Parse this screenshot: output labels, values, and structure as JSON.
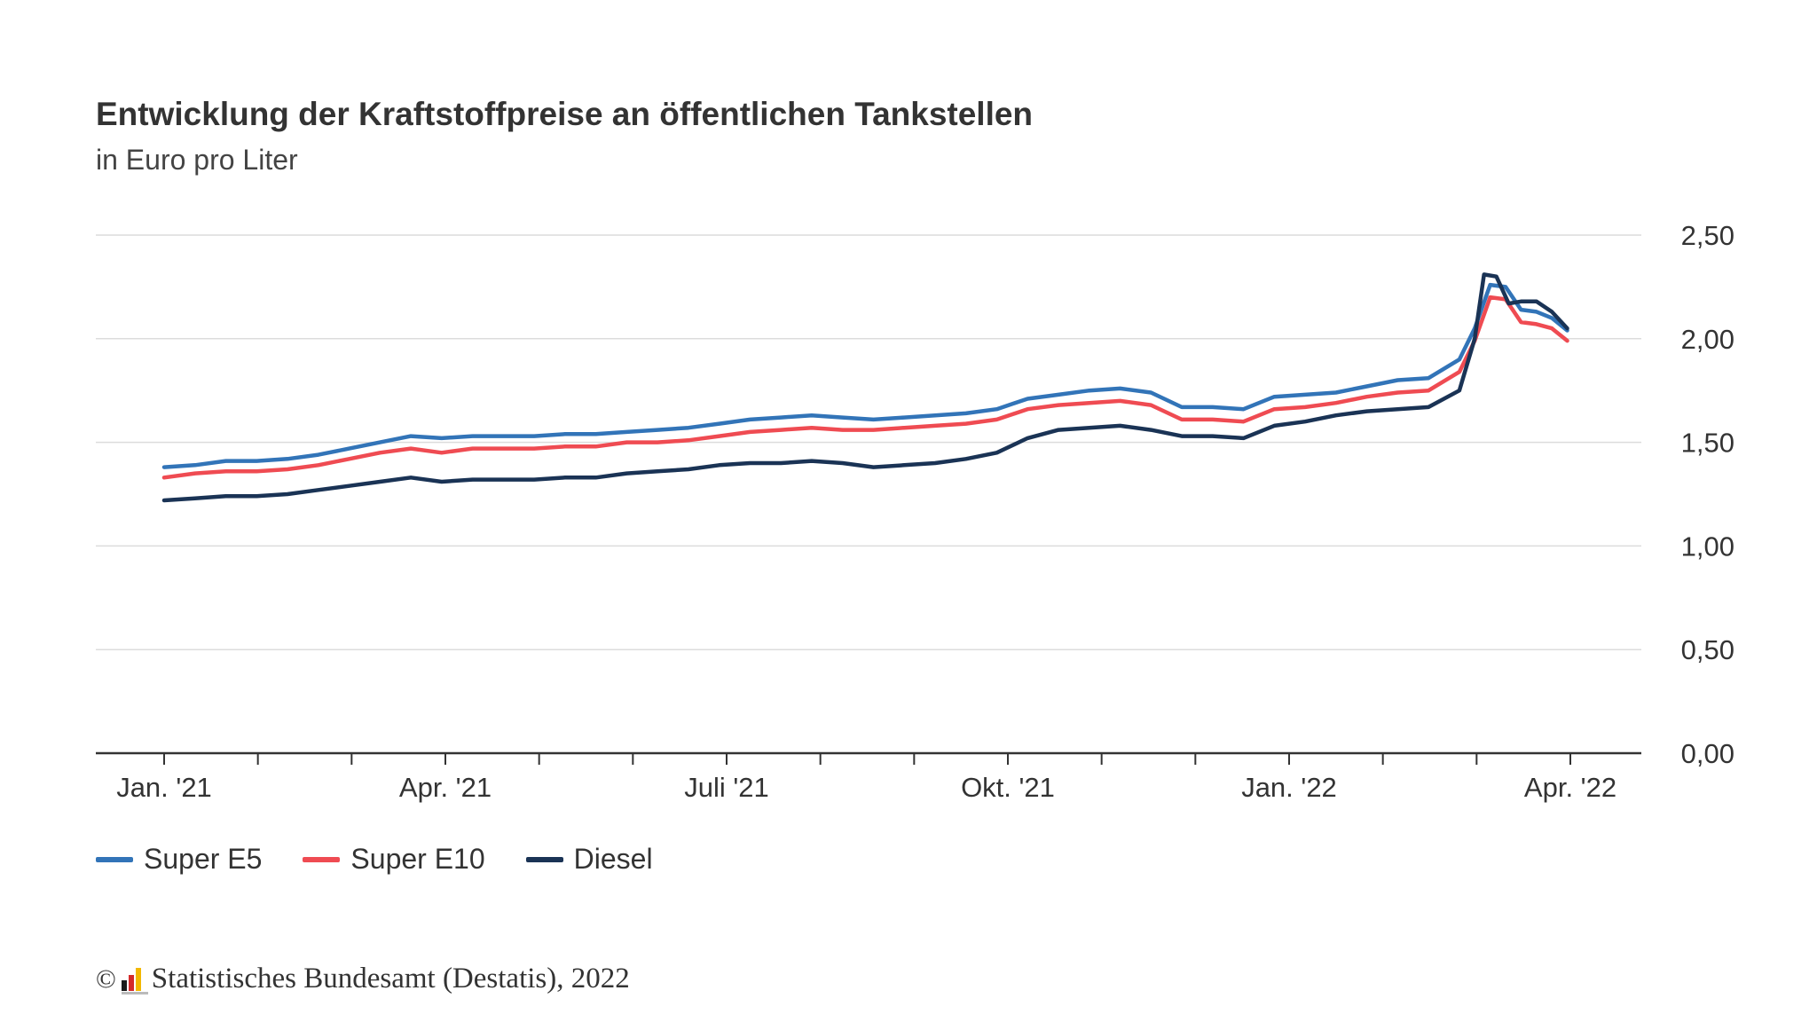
{
  "chart_data": {
    "type": "line",
    "title": "Entwicklung der Kraftstoffpreise an öffentlichen Tankstellen",
    "subtitle": "in Euro pro Liter",
    "ylim": [
      0,
      2.5
    ],
    "y_ticks": [
      "0,00",
      "0,50",
      "1,00",
      "1,50",
      "2,00",
      "2,50"
    ],
    "x_tick_labels": [
      "Jan. '21",
      "Apr. '21",
      "Juli '21",
      "Okt. '21",
      "Jan. '22",
      "Apr. '22"
    ],
    "x_range_days": [
      0,
      456
    ],
    "grid": "horizontal",
    "legend_position": "bottom-left",
    "series": [
      {
        "name": "Super E5",
        "color": "#3274b8",
        "x": [
          0,
          10,
          20,
          30,
          40,
          50,
          60,
          70,
          80,
          90,
          100,
          110,
          120,
          130,
          140,
          150,
          160,
          170,
          180,
          190,
          200,
          210,
          220,
          230,
          240,
          250,
          260,
          270,
          280,
          290,
          300,
          310,
          320,
          330,
          340,
          350,
          360,
          370,
          380,
          390,
          400,
          410,
          420,
          425,
          430,
          435,
          440,
          445,
          450,
          455
        ],
        "values": [
          1.38,
          1.39,
          1.41,
          1.41,
          1.42,
          1.44,
          1.47,
          1.5,
          1.53,
          1.52,
          1.53,
          1.53,
          1.53,
          1.54,
          1.54,
          1.55,
          1.56,
          1.57,
          1.59,
          1.61,
          1.62,
          1.63,
          1.62,
          1.61,
          1.62,
          1.63,
          1.64,
          1.66,
          1.71,
          1.73,
          1.75,
          1.76,
          1.74,
          1.67,
          1.67,
          1.66,
          1.72,
          1.73,
          1.74,
          1.77,
          1.8,
          1.81,
          1.9,
          2.05,
          2.26,
          2.25,
          2.14,
          2.13,
          2.1,
          2.04
        ]
      },
      {
        "name": "Super E10",
        "color": "#ef4b52",
        "x": [
          0,
          10,
          20,
          30,
          40,
          50,
          60,
          70,
          80,
          90,
          100,
          110,
          120,
          130,
          140,
          150,
          160,
          170,
          180,
          190,
          200,
          210,
          220,
          230,
          240,
          250,
          260,
          270,
          280,
          290,
          300,
          310,
          320,
          330,
          340,
          350,
          360,
          370,
          380,
          390,
          400,
          410,
          420,
          425,
          430,
          435,
          440,
          445,
          450,
          455
        ],
        "values": [
          1.33,
          1.35,
          1.36,
          1.36,
          1.37,
          1.39,
          1.42,
          1.45,
          1.47,
          1.45,
          1.47,
          1.47,
          1.47,
          1.48,
          1.48,
          1.5,
          1.5,
          1.51,
          1.53,
          1.55,
          1.56,
          1.57,
          1.56,
          1.56,
          1.57,
          1.58,
          1.59,
          1.61,
          1.66,
          1.68,
          1.69,
          1.7,
          1.68,
          1.61,
          1.61,
          1.6,
          1.66,
          1.67,
          1.69,
          1.72,
          1.74,
          1.75,
          1.84,
          1.99,
          2.2,
          2.19,
          2.08,
          2.07,
          2.05,
          1.99
        ]
      },
      {
        "name": "Diesel",
        "color": "#1a3355",
        "x": [
          0,
          10,
          20,
          30,
          40,
          50,
          60,
          70,
          80,
          90,
          100,
          110,
          120,
          130,
          140,
          150,
          160,
          170,
          180,
          190,
          200,
          210,
          220,
          230,
          240,
          250,
          260,
          270,
          280,
          290,
          300,
          310,
          320,
          330,
          340,
          350,
          360,
          370,
          380,
          390,
          400,
          410,
          420,
          425,
          428,
          432,
          436,
          440,
          445,
          450,
          455
        ],
        "values": [
          1.22,
          1.23,
          1.24,
          1.24,
          1.25,
          1.27,
          1.29,
          1.31,
          1.33,
          1.31,
          1.32,
          1.32,
          1.32,
          1.33,
          1.33,
          1.35,
          1.36,
          1.37,
          1.39,
          1.4,
          1.4,
          1.41,
          1.4,
          1.38,
          1.39,
          1.4,
          1.42,
          1.45,
          1.52,
          1.56,
          1.57,
          1.58,
          1.56,
          1.53,
          1.53,
          1.52,
          1.58,
          1.6,
          1.63,
          1.65,
          1.66,
          1.67,
          1.75,
          2.0,
          2.31,
          2.3,
          2.17,
          2.18,
          2.18,
          2.13,
          2.05
        ]
      }
    ]
  },
  "footer": {
    "copyright_symbol": "©",
    "source": "Statistisches Bundesamt (Destatis), 2022",
    "logo_icon": "destatis-bars-icon"
  }
}
